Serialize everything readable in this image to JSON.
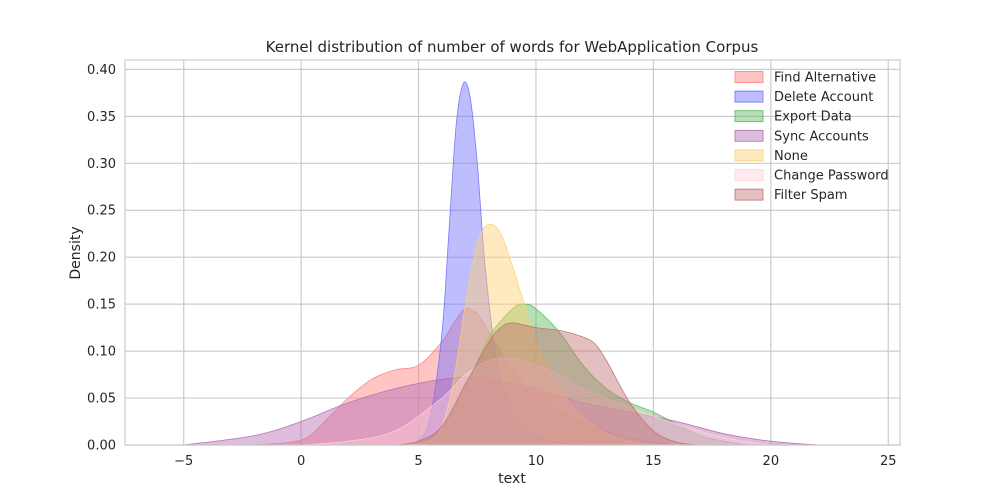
{
  "chart_data": {
    "type": "area",
    "title": "Kernel distribution of number of words for WebApplication Corpus",
    "xlabel": "text",
    "ylabel": "Density",
    "xlim": [
      -7.5,
      25.5
    ],
    "ylim": [
      0,
      0.41
    ],
    "xticks": [
      -5,
      0,
      5,
      10,
      15,
      20,
      25
    ],
    "yticks": [
      0.0,
      0.05,
      0.1,
      0.15,
      0.2,
      0.25,
      0.3,
      0.35,
      0.4
    ],
    "ytick_labels": [
      "0.00",
      "0.05",
      "0.10",
      "0.15",
      "0.20",
      "0.25",
      "0.30",
      "0.35",
      "0.40"
    ],
    "grid": true,
    "legend_position": "top-right",
    "series": [
      {
        "name": "Find Alternative",
        "color": "#ff7f7f",
        "x": [
          -2,
          0,
          1,
          2,
          3,
          4,
          5,
          6,
          6.5,
          7,
          7.5,
          8,
          9,
          10,
          11,
          12,
          13,
          14,
          15,
          16
        ],
        "y": [
          0,
          0.005,
          0.025,
          0.05,
          0.07,
          0.08,
          0.085,
          0.11,
          0.13,
          0.145,
          0.14,
          0.12,
          0.08,
          0.05,
          0.035,
          0.025,
          0.015,
          0.008,
          0.003,
          0
        ]
      },
      {
        "name": "Delete Account",
        "color": "#6e6eff",
        "x": [
          4,
          5,
          5.5,
          6,
          6.3,
          6.6,
          6.9,
          7.2,
          7.5,
          7.8,
          8.2,
          8.6,
          9,
          9.5,
          10,
          11,
          12
        ],
        "y": [
          0,
          0.005,
          0.03,
          0.12,
          0.23,
          0.34,
          0.385,
          0.37,
          0.3,
          0.2,
          0.11,
          0.06,
          0.035,
          0.02,
          0.01,
          0.003,
          0
        ]
      },
      {
        "name": "Export Data",
        "color": "#5cb85c",
        "x": [
          4,
          5,
          6,
          7,
          8,
          9,
          9.5,
          10,
          11,
          12,
          13,
          14,
          15,
          16,
          17,
          18,
          19
        ],
        "y": [
          0,
          0.003,
          0.02,
          0.06,
          0.115,
          0.145,
          0.15,
          0.145,
          0.12,
          0.085,
          0.06,
          0.045,
          0.035,
          0.022,
          0.01,
          0.004,
          0
        ]
      },
      {
        "name": "Sync Accounts",
        "color": "#b36bb3",
        "x": [
          -5,
          -2,
          0,
          2,
          4,
          6,
          7,
          8,
          10,
          12,
          14,
          16,
          18,
          20,
          22
        ],
        "y": [
          0,
          0.01,
          0.025,
          0.045,
          0.06,
          0.07,
          0.072,
          0.07,
          0.06,
          0.045,
          0.035,
          0.025,
          0.012,
          0.004,
          0
        ]
      },
      {
        "name": "None",
        "color": "#ffce6e",
        "x": [
          4.5,
          5.5,
          6,
          6.5,
          7,
          7.5,
          8,
          8.5,
          9,
          9.5,
          10,
          11,
          12,
          13,
          14,
          15
        ],
        "y": [
          0,
          0.005,
          0.02,
          0.07,
          0.15,
          0.215,
          0.235,
          0.225,
          0.19,
          0.15,
          0.11,
          0.06,
          0.03,
          0.012,
          0.004,
          0
        ]
      },
      {
        "name": "Change Password",
        "color": "#ffd1dc",
        "x": [
          0,
          2,
          4,
          6,
          7,
          8,
          9,
          10,
          11,
          12,
          14,
          16,
          18,
          20
        ],
        "y": [
          0,
          0.004,
          0.015,
          0.05,
          0.075,
          0.09,
          0.092,
          0.085,
          0.075,
          0.06,
          0.04,
          0.022,
          0.008,
          0
        ]
      },
      {
        "name": "Filter Spam",
        "color": "#c17070",
        "x": [
          4,
          5,
          6,
          7,
          8,
          8.5,
          9,
          10,
          11,
          12,
          12.5,
          13,
          14,
          15,
          16,
          17
        ],
        "y": [
          0,
          0.004,
          0.02,
          0.065,
          0.11,
          0.125,
          0.13,
          0.125,
          0.122,
          0.115,
          0.108,
          0.09,
          0.045,
          0.015,
          0.003,
          0
        ]
      }
    ]
  }
}
